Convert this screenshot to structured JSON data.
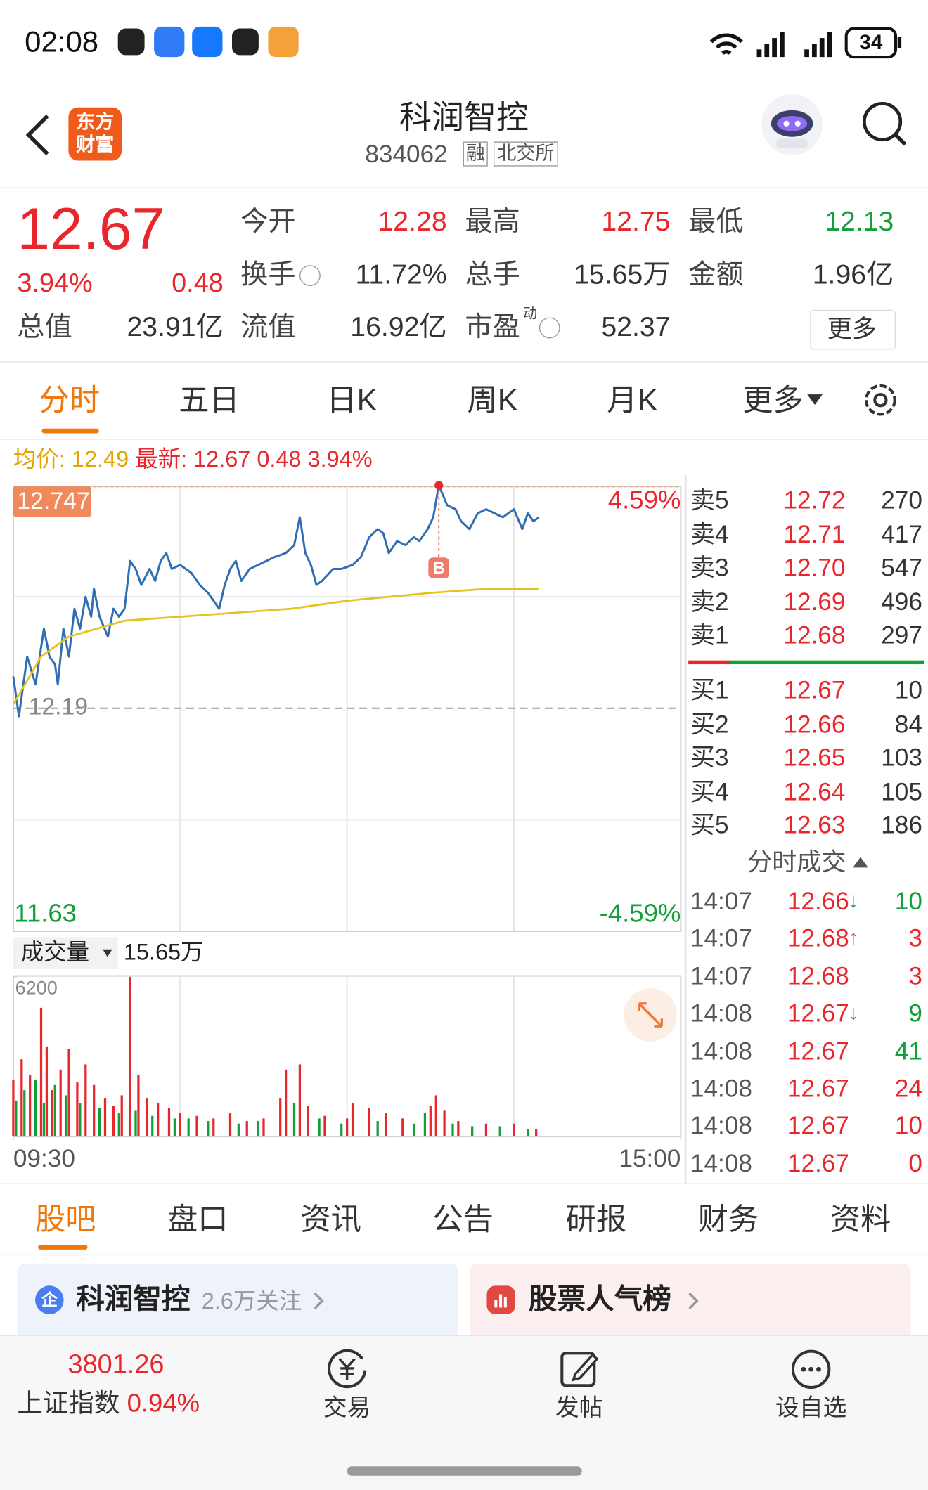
{
  "status_bar": {
    "time": "02:08",
    "battery": "34"
  },
  "header": {
    "logo": [
      "东方",
      "财富"
    ],
    "name": "科润智控",
    "code": "834062",
    "tags": [
      "融",
      "北交所"
    ]
  },
  "quote": {
    "price": "12.67",
    "change_pct": "3.94%",
    "change": "0.48",
    "total_value": {
      "label": "总值",
      "value": "23.91亿"
    },
    "open": {
      "label": "今开",
      "value": "12.28",
      "color": "#e8262b"
    },
    "high": {
      "label": "最高",
      "value": "12.75",
      "color": "#e8262b"
    },
    "low": {
      "label": "最低",
      "value": "12.13",
      "color": "#13a03a"
    },
    "turnover": {
      "label": "换手",
      "value": "11.72%"
    },
    "volume": {
      "label": "总手",
      "value": "15.65万"
    },
    "amount": {
      "label": "金额",
      "value": "1.96亿"
    },
    "float_value": {
      "label": "流值",
      "value": "16.92亿"
    },
    "pe": {
      "label": "市盈",
      "sup": "动",
      "value": "52.37"
    },
    "more": "更多"
  },
  "tabs": {
    "items": [
      "分时",
      "五日",
      "日K",
      "周K",
      "月K",
      "更多"
    ]
  },
  "info": {
    "avg_label": "均价:",
    "avg": "12.49",
    "latest_label": "最新:",
    "latest": "12.67",
    "change": "0.48",
    "change_pct": "3.94%"
  },
  "chart_data": [
    {
      "type": "line",
      "xlim": [
        0,
        240
      ],
      "ylim": [
        11.63,
        12.747
      ],
      "yticks": [
        12.747,
        12.19,
        11.63
      ],
      "y2lim": [
        -4.59,
        4.59
      ],
      "y2ticks": [
        {
          "value": 4.59,
          "label": "4.59%"
        },
        {
          "value": -4.59,
          "label": "-4.59%"
        }
      ],
      "xgrid": [
        60,
        120,
        180
      ],
      "ygrid": [
        12.47,
        11.91
      ],
      "series": [
        {
          "color": "#2f6db5",
          "x": [
            0,
            2,
            5,
            8,
            11,
            13,
            15,
            16,
            18,
            20,
            22,
            24,
            26,
            28,
            29,
            31,
            34,
            36,
            38,
            40,
            42,
            44,
            46,
            49,
            51,
            53,
            55,
            57,
            60,
            64,
            67,
            70,
            74,
            76,
            78,
            80,
            82,
            85,
            88,
            91,
            94,
            98,
            101,
            103,
            105,
            107,
            109,
            111,
            115,
            118,
            122,
            125,
            128,
            131,
            133,
            135,
            138,
            141,
            144,
            146,
            149,
            151,
            153,
            156,
            159,
            161,
            164,
            167,
            170,
            173,
            176,
            180,
            183,
            185,
            187,
            189
          ],
          "values": [
            12.27,
            12.17,
            12.32,
            12.25,
            12.39,
            12.32,
            12.3,
            12.25,
            12.39,
            12.32,
            12.44,
            12.39,
            12.47,
            12.42,
            12.49,
            12.42,
            12.37,
            12.44,
            12.42,
            12.44,
            12.56,
            12.54,
            12.5,
            12.54,
            12.51,
            12.56,
            12.58,
            12.54,
            12.55,
            12.53,
            12.5,
            12.48,
            12.44,
            12.5,
            12.54,
            12.56,
            12.51,
            12.54,
            12.55,
            12.56,
            12.57,
            12.58,
            12.6,
            12.67,
            12.58,
            12.55,
            12.5,
            12.51,
            12.54,
            12.54,
            12.55,
            12.57,
            12.62,
            12.64,
            12.63,
            12.58,
            12.61,
            12.6,
            12.62,
            12.61,
            12.64,
            12.67,
            12.75,
            12.7,
            12.69,
            12.66,
            12.64,
            12.68,
            12.69,
            12.68,
            12.67,
            12.69,
            12.64,
            12.68,
            12.66,
            12.67
          ]
        },
        {
          "color": "#e6c21f",
          "x": [
            0,
            10,
            20,
            40,
            60,
            80,
            100,
            120,
            150,
            170,
            189
          ],
          "values": [
            12.2,
            12.32,
            12.37,
            12.41,
            12.42,
            12.43,
            12.44,
            12.46,
            12.48,
            12.49,
            12.49
          ]
        }
      ],
      "annotations": [
        {
          "x": 153,
          "y": 12.75,
          "label": "B"
        }
      ]
    },
    {
      "type": "bar",
      "title": "成交量",
      "total": "15.65万",
      "xlim": [
        0,
        240
      ],
      "xticks": [
        {
          "value": 0,
          "label": "09:30"
        },
        {
          "value": 240,
          "label": "15:00"
        }
      ],
      "xgrid": [
        60,
        120,
        180
      ],
      "ylim": [
        0,
        6200
      ],
      "yticks": [
        6200
      ],
      "series": [
        {
          "color": "#e8262b",
          "x": [
            0,
            3,
            6,
            10,
            12,
            14,
            17,
            20,
            23,
            26,
            29,
            33,
            36,
            39,
            42,
            45,
            48,
            52,
            56,
            60,
            66,
            72,
            78,
            84,
            90,
            96,
            98,
            103,
            106,
            112,
            120,
            122,
            128,
            134,
            140,
            150,
            152,
            155,
            160,
            170,
            180,
            188
          ],
          "values": [
            2200,
            3000,
            2400,
            5000,
            3500,
            1800,
            2600,
            3400,
            2100,
            2800,
            2000,
            1500,
            1200,
            1600,
            6200,
            2400,
            1500,
            1300,
            1100,
            900,
            800,
            700,
            900,
            600,
            700,
            1500,
            2600,
            2800,
            1200,
            800,
            700,
            1300,
            1100,
            900,
            700,
            1200,
            1600,
            1000,
            600,
            500,
            500,
            300
          ]
        },
        {
          "color": "#13a03a",
          "x": [
            1,
            4,
            8,
            11,
            15,
            19,
            24,
            31,
            38,
            44,
            50,
            58,
            63,
            70,
            81,
            88,
            101,
            110,
            118,
            131,
            144,
            148,
            158,
            165,
            175,
            185
          ],
          "values": [
            1400,
            1800,
            2200,
            1300,
            2000,
            1600,
            1300,
            1100,
            900,
            1000,
            800,
            700,
            700,
            600,
            500,
            600,
            1300,
            700,
            500,
            600,
            500,
            900,
            500,
            400,
            400,
            300
          ]
        }
      ]
    }
  ],
  "order_book": {
    "asks": [
      {
        "label": "卖5",
        "price": "12.72",
        "volume": "270"
      },
      {
        "label": "卖4",
        "price": "12.71",
        "volume": "417"
      },
      {
        "label": "卖3",
        "price": "12.70",
        "volume": "547"
      },
      {
        "label": "卖2",
        "price": "12.69",
        "volume": "496"
      },
      {
        "label": "卖1",
        "price": "12.68",
        "volume": "297"
      }
    ],
    "bids": [
      {
        "label": "买1",
        "price": "12.67",
        "volume": "10"
      },
      {
        "label": "买2",
        "price": "12.66",
        "volume": "84"
      },
      {
        "label": "买3",
        "price": "12.65",
        "volume": "103"
      },
      {
        "label": "买4",
        "price": "12.64",
        "volume": "105"
      },
      {
        "label": "买5",
        "price": "12.63",
        "volume": "186"
      }
    ]
  },
  "trades": {
    "title": "分时成交",
    "rows": [
      {
        "time": "14:07",
        "price": "12.66",
        "arrow": "↓",
        "volume": "10",
        "color": "#13a03a"
      },
      {
        "time": "14:07",
        "price": "12.68",
        "arrow": "↑",
        "volume": "3",
        "color": "#e8262b"
      },
      {
        "time": "14:07",
        "price": "12.68",
        "volume": "3",
        "color": "#e8262b"
      },
      {
        "time": "14:08",
        "price": "12.67",
        "arrow": "↓",
        "volume": "9",
        "color": "#13a03a"
      },
      {
        "time": "14:08",
        "price": "12.67",
        "volume": "41",
        "color": "#13a03a"
      },
      {
        "time": "14:08",
        "price": "12.67",
        "volume": "24",
        "color": "#e8262b"
      },
      {
        "time": "14:08",
        "price": "12.67",
        "volume": "10",
        "color": "#e8262b"
      },
      {
        "time": "14:08",
        "price": "12.67",
        "volume": "0",
        "color": "#e8262b"
      }
    ]
  },
  "sections": {
    "items": [
      "股吧",
      "盘口",
      "资讯",
      "公告",
      "研报",
      "财务",
      "资料"
    ]
  },
  "cards": [
    {
      "icon": "企",
      "title": "科润智控",
      "subtitle": "2.6万关注"
    },
    {
      "title": "股票人气榜"
    }
  ],
  "footer": {
    "index_value": "3801.26",
    "index_name": "上证指数",
    "index_change": "0.94%",
    "actions": [
      "交易",
      "发帖",
      "设自选"
    ]
  }
}
